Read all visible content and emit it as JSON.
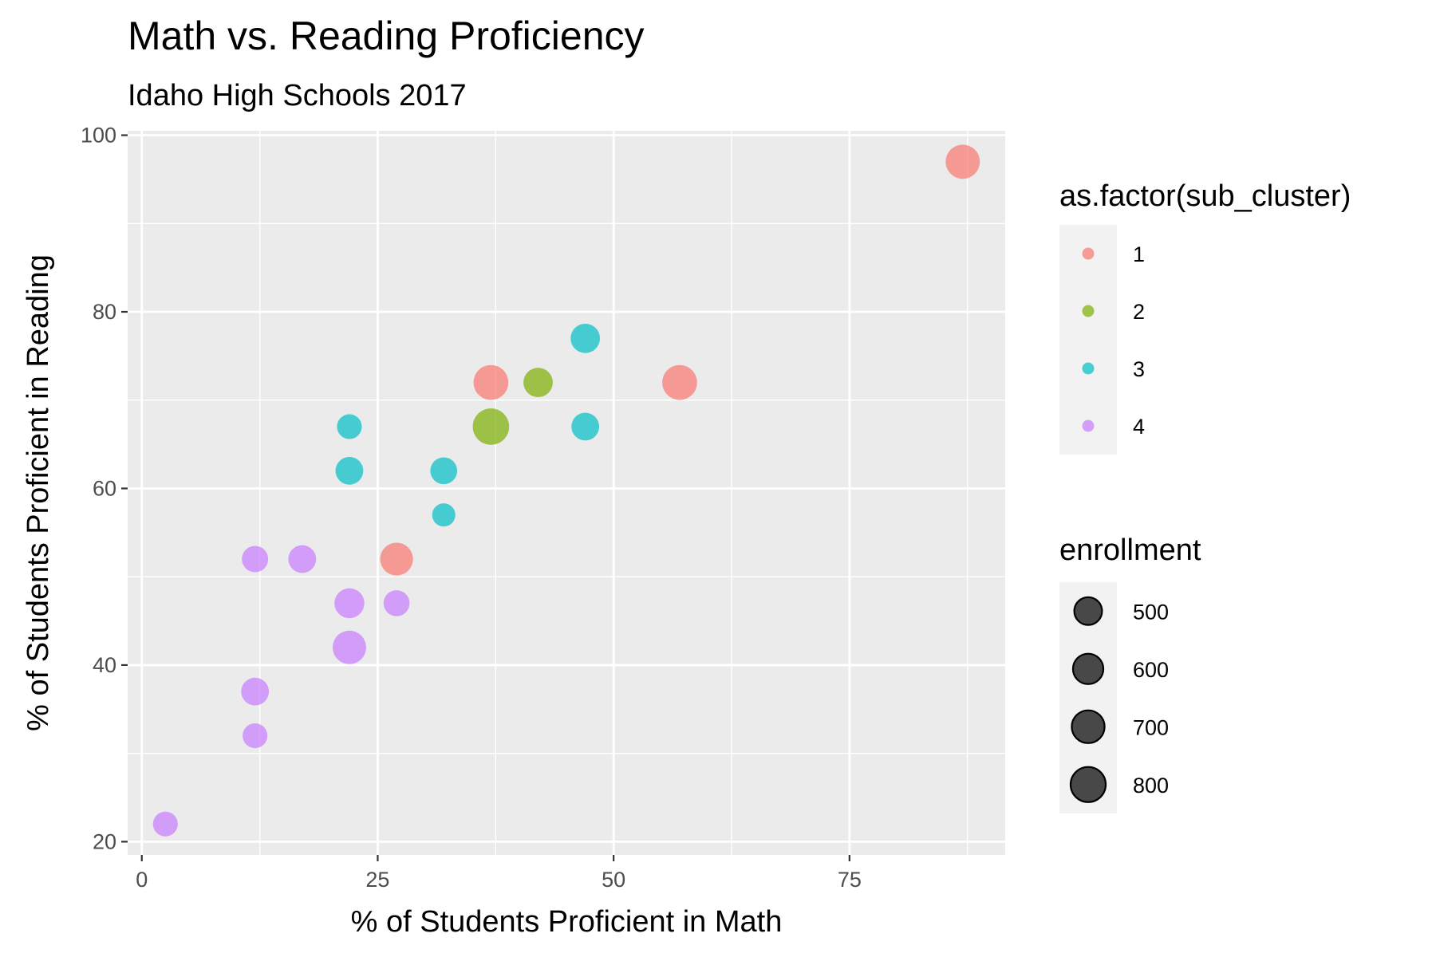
{
  "chart_data": {
    "type": "scatter",
    "title": "Math vs. Reading Proficiency",
    "subtitle": "Idaho High Schools 2017",
    "xlabel": "% of Students Proficient in Math",
    "ylabel": "% of Students Proficient in Reading",
    "xlim": [
      -1.5,
      91.5
    ],
    "ylim": [
      18.5,
      100.5
    ],
    "x_ticks": [
      0,
      25,
      50,
      75
    ],
    "x_tick_labels": [
      "0",
      "25",
      "50",
      "75"
    ],
    "y_ticks": [
      20,
      40,
      60,
      80,
      100
    ],
    "y_tick_labels": [
      "20",
      "40",
      "60",
      "80",
      "100"
    ],
    "grid": true,
    "legend_position": "right",
    "colors": {
      "1": "#F8766D",
      "2": "#7CAE00",
      "3": "#00BFC4",
      "4": "#C77CFF"
    },
    "point_alpha": 0.7,
    "color_legend": {
      "title": "as.factor(sub_cluster)",
      "entries": [
        {
          "label": "1",
          "color": "#F8766D"
        },
        {
          "label": "2",
          "color": "#7CAE00"
        },
        {
          "label": "3",
          "color": "#00BFC4"
        },
        {
          "label": "4",
          "color": "#C77CFF"
        }
      ]
    },
    "size_legend": {
      "title": "enrollment",
      "entries": [
        {
          "label": "500",
          "value": 500
        },
        {
          "label": "600",
          "value": 600
        },
        {
          "label": "700",
          "value": 700
        },
        {
          "label": "800",
          "value": 800
        }
      ]
    },
    "points": [
      {
        "x": 87,
        "y": 97,
        "cluster": "1",
        "enrollment": 760
      },
      {
        "x": 57,
        "y": 72,
        "cluster": "1",
        "enrollment": 790
      },
      {
        "x": 37,
        "y": 72,
        "cluster": "1",
        "enrollment": 790
      },
      {
        "x": 27,
        "y": 52,
        "cluster": "1",
        "enrollment": 700
      },
      {
        "x": 42,
        "y": 72,
        "cluster": "2",
        "enrollment": 560
      },
      {
        "x": 37,
        "y": 67,
        "cluster": "2",
        "enrollment": 860
      },
      {
        "x": 47,
        "y": 77,
        "cluster": "3",
        "enrollment": 560
      },
      {
        "x": 47,
        "y": 67,
        "cluster": "3",
        "enrollment": 500
      },
      {
        "x": 22,
        "y": 67,
        "cluster": "3",
        "enrollment": 400
      },
      {
        "x": 22,
        "y": 62,
        "cluster": "3",
        "enrollment": 500
      },
      {
        "x": 32,
        "y": 62,
        "cluster": "3",
        "enrollment": 470
      },
      {
        "x": 32,
        "y": 57,
        "cluster": "3",
        "enrollment": 350
      },
      {
        "x": 12,
        "y": 52,
        "cluster": "4",
        "enrollment": 450
      },
      {
        "x": 17,
        "y": 52,
        "cluster": "4",
        "enrollment": 500
      },
      {
        "x": 22,
        "y": 47,
        "cluster": "4",
        "enrollment": 580
      },
      {
        "x": 27,
        "y": 47,
        "cluster": "4",
        "enrollment": 440
      },
      {
        "x": 22,
        "y": 42,
        "cluster": "4",
        "enrollment": 730
      },
      {
        "x": 12,
        "y": 37,
        "cluster": "4",
        "enrollment": 500
      },
      {
        "x": 12,
        "y": 32,
        "cluster": "4",
        "enrollment": 400
      },
      {
        "x": 2.5,
        "y": 22,
        "cluster": "4",
        "enrollment": 400
      }
    ]
  }
}
